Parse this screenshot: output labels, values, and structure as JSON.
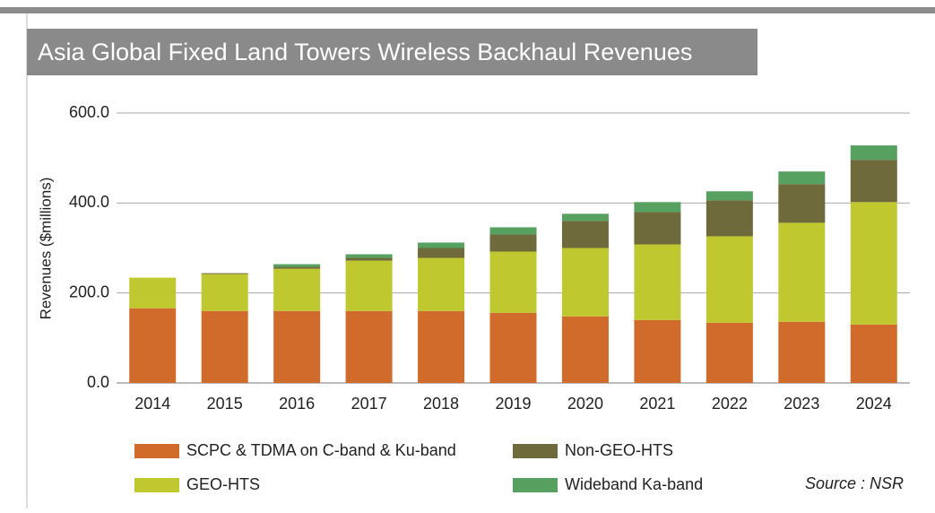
{
  "chart_data": {
    "type": "stacked_bar",
    "title": "Asia Global  Fixed Land Towers Wireless Backhaul Revenues",
    "y_label": "Revenues ($millions)",
    "source": "Source : NSR",
    "categories": [
      "2014",
      "2015",
      "2016",
      "2017",
      "2018",
      "2019",
      "2020",
      "2021",
      "2022",
      "2023",
      "2024"
    ],
    "series": [
      {
        "name": "SCPC & TDMA on C-band & Ku-band",
        "color": "#d06b2b",
        "values": [
          166,
          160,
          160,
          160,
          160,
          156,
          148,
          140,
          134,
          136,
          130
        ]
      },
      {
        "name": "GEO-HTS",
        "color": "#bfc82f",
        "values": [
          68,
          82,
          94,
          112,
          118,
          136,
          152,
          168,
          192,
          220,
          272
        ]
      },
      {
        "name": "Non-GEO-HTS",
        "color": "#6e6a3c",
        "values": [
          0,
          2,
          4,
          6,
          22,
          38,
          60,
          72,
          80,
          86,
          94
        ]
      },
      {
        "name": "Wideband Ka-band",
        "color": "#56a060",
        "values": [
          0,
          0,
          6,
          8,
          12,
          16,
          16,
          22,
          20,
          28,
          32
        ]
      }
    ],
    "ylim": [
      0,
      600
    ],
    "yticks": [
      {
        "value": 0,
        "label": "0.0"
      },
      {
        "value": 200,
        "label": "200.0"
      },
      {
        "value": 400,
        "label": "400.0"
      },
      {
        "value": 600,
        "label": "600.0"
      }
    ],
    "grid": true
  }
}
